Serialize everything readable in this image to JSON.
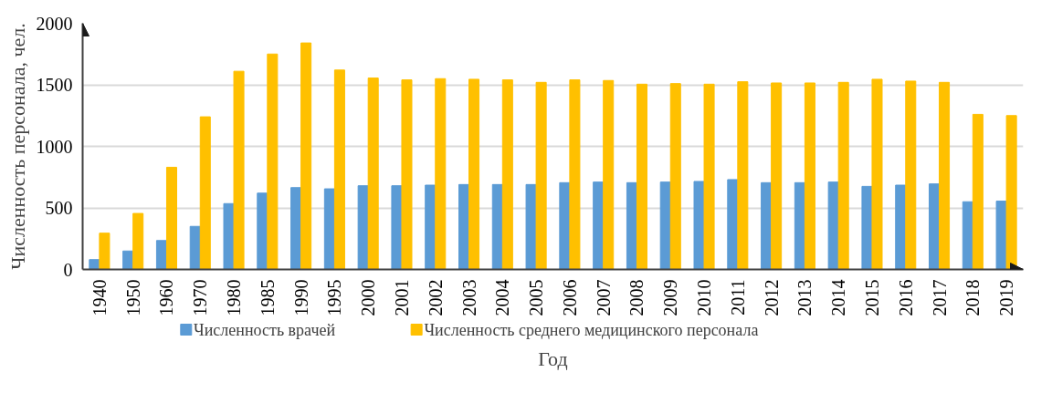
{
  "chart_data": {
    "type": "bar",
    "xlabel": "Год",
    "ylabel": "Численность персонала, чел.",
    "categories": [
      "1940",
      "1950",
      "1960",
      "1970",
      "1980",
      "1985",
      "1990",
      "1995",
      "2000",
      "2001",
      "2002",
      "2003",
      "2004",
      "2005",
      "2006",
      "2007",
      "2008",
      "2009",
      "2010",
      "2011",
      "2012",
      "2013",
      "2014",
      "2015",
      "2016",
      "2017",
      "2018",
      "2019"
    ],
    "series": [
      {
        "name": "Численность врачей",
        "color": "#5b9bd5",
        "values": [
          80,
          150,
          235,
          350,
          535,
          620,
          665,
          655,
          680,
          680,
          685,
          690,
          690,
          690,
          705,
          710,
          705,
          710,
          715,
          730,
          705,
          705,
          710,
          675,
          685,
          695,
          550,
          555
        ]
      },
      {
        "name": "Численность среднего медицинского персонала",
        "color": "#ffc000",
        "values": [
          295,
          455,
          830,
          1240,
          1610,
          1750,
          1840,
          1620,
          1555,
          1540,
          1550,
          1545,
          1540,
          1520,
          1540,
          1535,
          1505,
          1510,
          1505,
          1525,
          1515,
          1515,
          1520,
          1545,
          1530,
          1520,
          1260,
          1250
        ]
      }
    ],
    "ylim": [
      0,
      2000
    ],
    "yticks": [
      0,
      500,
      1000,
      1500,
      2000
    ],
    "grid": "y",
    "legend": "bottom"
  }
}
